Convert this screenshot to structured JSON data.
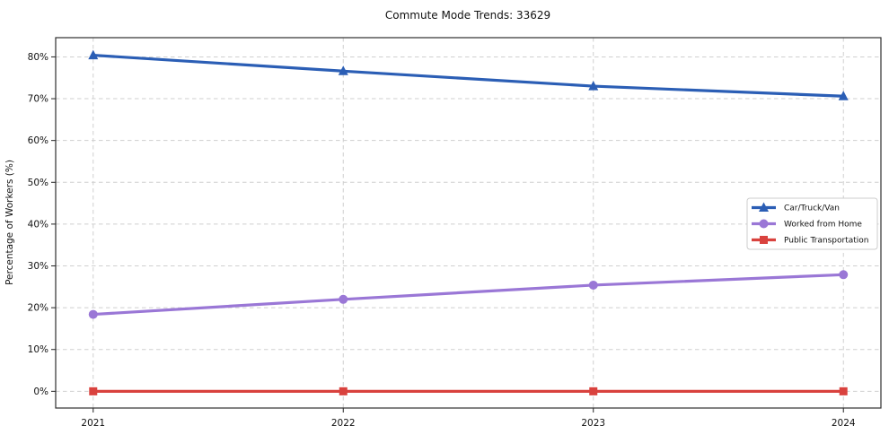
{
  "chart_data": {
    "type": "line",
    "title": "Commute Mode Trends: 33629",
    "xlabel": "",
    "ylabel": "Percentage of Workers (%)",
    "x": [
      2021,
      2022,
      2023,
      2024
    ],
    "x_tick_labels": [
      "2021",
      "2022",
      "2023",
      "2024"
    ],
    "y_ticks": [
      0,
      10,
      20,
      30,
      40,
      50,
      60,
      70,
      80
    ],
    "y_tick_labels": [
      "0%",
      "10%",
      "20%",
      "30%",
      "40%",
      "50%",
      "60%",
      "70%",
      "80%"
    ],
    "xlim": [
      2020.85,
      2024.15
    ],
    "ylim": [
      -4.0,
      84.6
    ],
    "grid": true,
    "grid_style": "dashed",
    "legend_position": "center right",
    "series": [
      {
        "name": "Car/Truck/Van",
        "marker": "triangle",
        "color": "#2b5eb5",
        "values": [
          80.4,
          76.6,
          73.0,
          70.6
        ]
      },
      {
        "name": "Worked from Home",
        "marker": "circle",
        "color": "#9a77d6",
        "values": [
          18.4,
          22.0,
          25.4,
          27.9
        ]
      },
      {
        "name": "Public Transportation",
        "marker": "square",
        "color": "#d9423e",
        "values": [
          0.0,
          0.0,
          0.0,
          0.0
        ]
      }
    ],
    "colors": {
      "grid": "#cfcfcf",
      "spine": "#2e2e2e",
      "text": "#111111",
      "legend_border": "#cccccc",
      "legend_background": "#ffffff"
    }
  }
}
